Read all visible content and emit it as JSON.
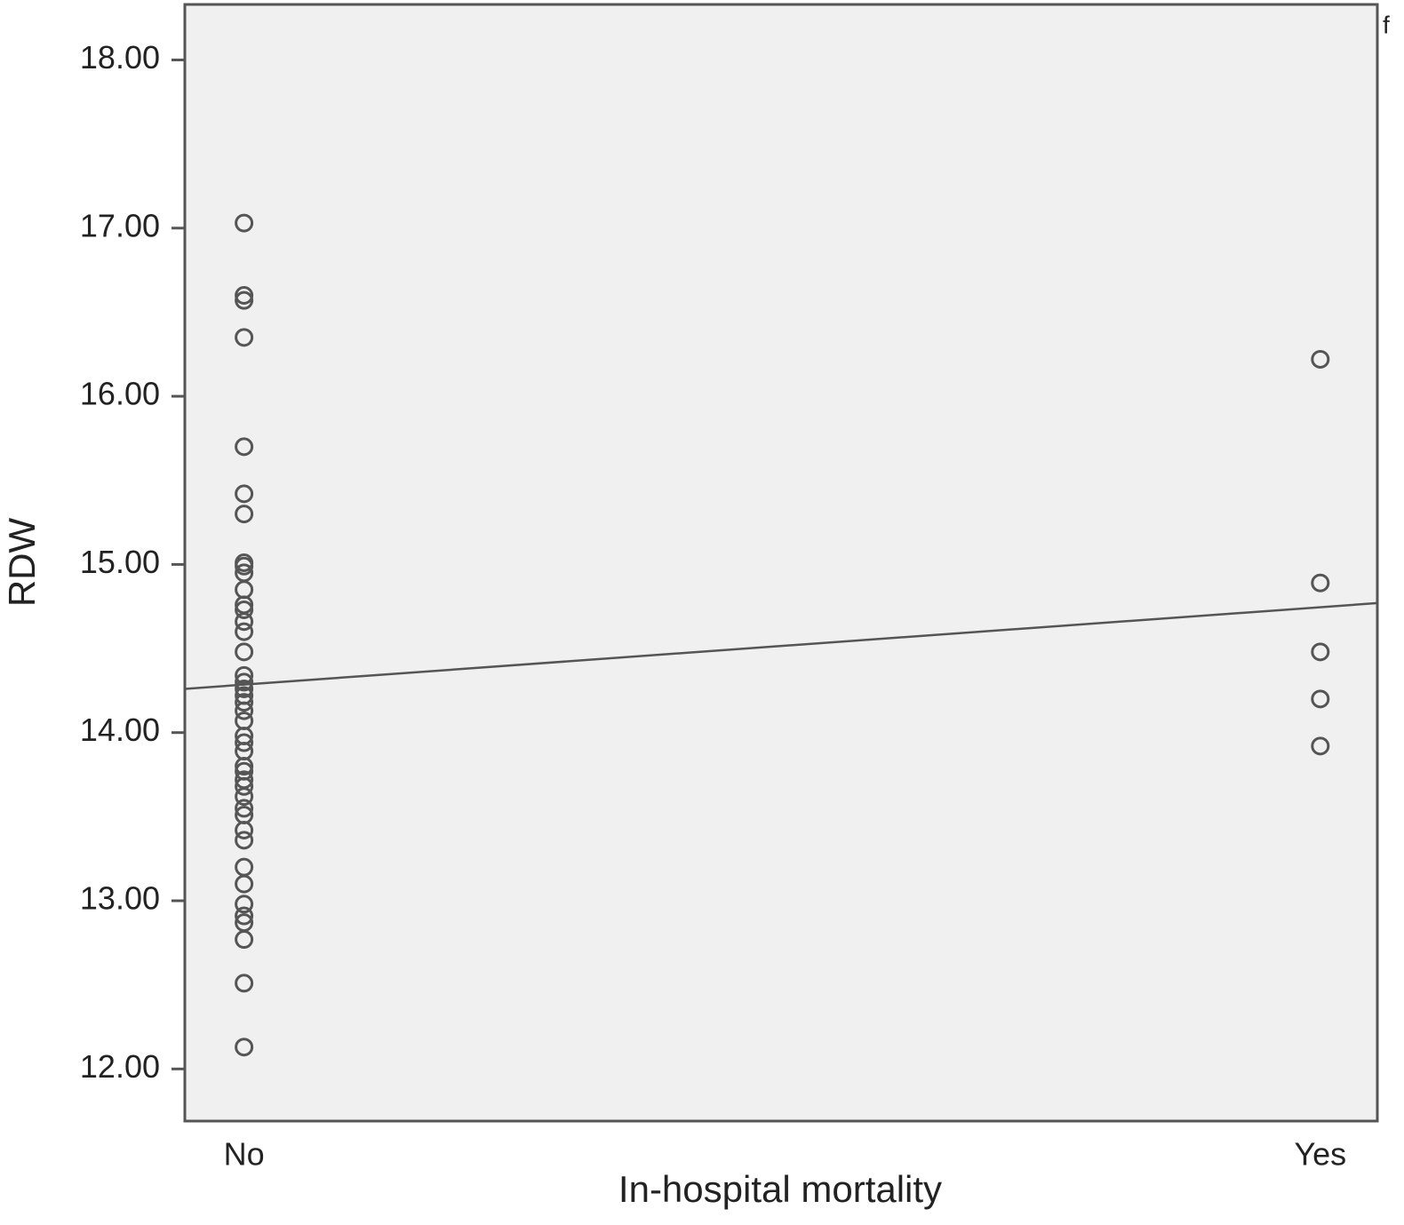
{
  "chart_data": {
    "type": "scatter",
    "x_label": "In-hospital mortality",
    "y_label": "RDW",
    "annotation": "f",
    "x": [
      0,
      0,
      0,
      0,
      0,
      0,
      0,
      0,
      0,
      0,
      0,
      0,
      0,
      0,
      0,
      0,
      0,
      0,
      0,
      0,
      0,
      0,
      0,
      0,
      0,
      0,
      0,
      0,
      0,
      0,
      0,
      0,
      0,
      0,
      0,
      0,
      0,
      0,
      0,
      0,
      0,
      0,
      0,
      1,
      1,
      1,
      1,
      1
    ],
    "values": [
      17.03,
      16.6,
      16.57,
      16.35,
      15.7,
      15.42,
      15.3,
      15.01,
      14.99,
      14.95,
      14.85,
      14.76,
      14.73,
      14.66,
      14.6,
      14.48,
      14.34,
      14.3,
      14.26,
      14.22,
      14.18,
      14.13,
      14.07,
      13.98,
      13.94,
      13.89,
      13.8,
      13.77,
      13.72,
      13.68,
      13.62,
      13.55,
      13.51,
      13.42,
      13.36,
      13.2,
      13.1,
      12.98,
      12.91,
      12.87,
      12.77,
      12.51,
      12.13,
      16.22,
      14.89,
      14.48,
      14.2,
      13.92
    ],
    "color": "#555555",
    "fit_line": {
      "x": [
        -0.055,
        1.053
      ],
      "y": [
        14.26,
        14.77
      ],
      "color": "#555555"
    },
    "xlim": [
      -0.055,
      1.053
    ],
    "xticks": [
      {
        "value": 0,
        "label": "No"
      },
      {
        "value": 1,
        "label": "Yes"
      }
    ],
    "ylim": [
      11.69,
      18.33
    ],
    "yticks": [
      {
        "value": 12,
        "label": "12.00"
      },
      {
        "value": 13,
        "label": "13.00"
      },
      {
        "value": 14,
        "label": "14.00"
      },
      {
        "value": 15,
        "label": "15.00"
      },
      {
        "value": 16,
        "label": "16.00"
      },
      {
        "value": 17,
        "label": "17.00"
      },
      {
        "value": 18,
        "label": "18.00"
      }
    ]
  }
}
